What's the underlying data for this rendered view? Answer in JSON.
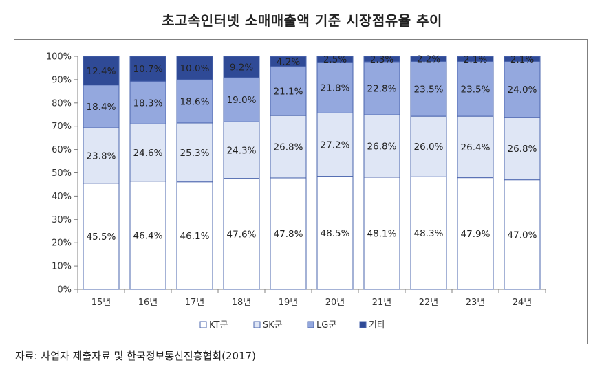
{
  "title": "초고속인터넷 소매매출액 기준 시장점유율 추이",
  "source": "자료: 사업자 제출자료 및 한국정보통신진흥협회(2017)",
  "chart_data": {
    "type": "bar",
    "stacked": true,
    "title": "초고속인터넷 소매매출액 기준 시장점유율 추이",
    "categories": [
      "15년",
      "16년",
      "17년",
      "18년",
      "19년",
      "20년",
      "21년",
      "22년",
      "23년",
      "24년"
    ],
    "ylim": [
      0,
      100
    ],
    "yticks": [
      "0%",
      "10%",
      "20%",
      "30%",
      "40%",
      "50%",
      "60%",
      "70%",
      "80%",
      "90%",
      "100%"
    ],
    "legend_position": "bottom",
    "grid": false,
    "series": [
      {
        "name": "KT군",
        "color": "#ffffff",
        "values": [
          45.5,
          46.4,
          46.1,
          47.6,
          47.8,
          48.5,
          48.1,
          48.3,
          47.9,
          47.0
        ],
        "labels": [
          "45.5%",
          "46.4%",
          "46.1%",
          "47.6%",
          "47.8%",
          "48.5%",
          "48.1%",
          "48.3%",
          "47.9%",
          "47.0%"
        ]
      },
      {
        "name": "SK군",
        "color": "#dfe6f5",
        "values": [
          23.8,
          24.6,
          25.3,
          24.3,
          26.8,
          27.2,
          26.8,
          26.0,
          26.4,
          26.8
        ],
        "labels": [
          "23.8%",
          "24.6%",
          "25.3%",
          "24.3%",
          "26.8%",
          "27.2%",
          "26.8%",
          "26.0%",
          "26.4%",
          "26.8%"
        ]
      },
      {
        "name": "LG군",
        "color": "#94a8de",
        "values": [
          18.4,
          18.3,
          18.6,
          19.0,
          21.1,
          21.8,
          22.8,
          23.5,
          23.5,
          24.0
        ],
        "labels": [
          "18.4%",
          "18.3%",
          "18.6%",
          "19.0%",
          "21.1%",
          "21.8%",
          "22.8%",
          "23.5%",
          "23.5%",
          "24.0%"
        ]
      },
      {
        "name": "기타",
        "color": "#2f4a96",
        "values": [
          12.4,
          10.7,
          10.0,
          9.2,
          4.2,
          2.5,
          2.3,
          2.2,
          2.1,
          2.1
        ],
        "labels": [
          "12.4%",
          "10.7%",
          "10.0%",
          "9.2%",
          "4.2%",
          "2.5%",
          "2.3%",
          "2.2%",
          "2.1%",
          "2.1%"
        ]
      }
    ]
  }
}
